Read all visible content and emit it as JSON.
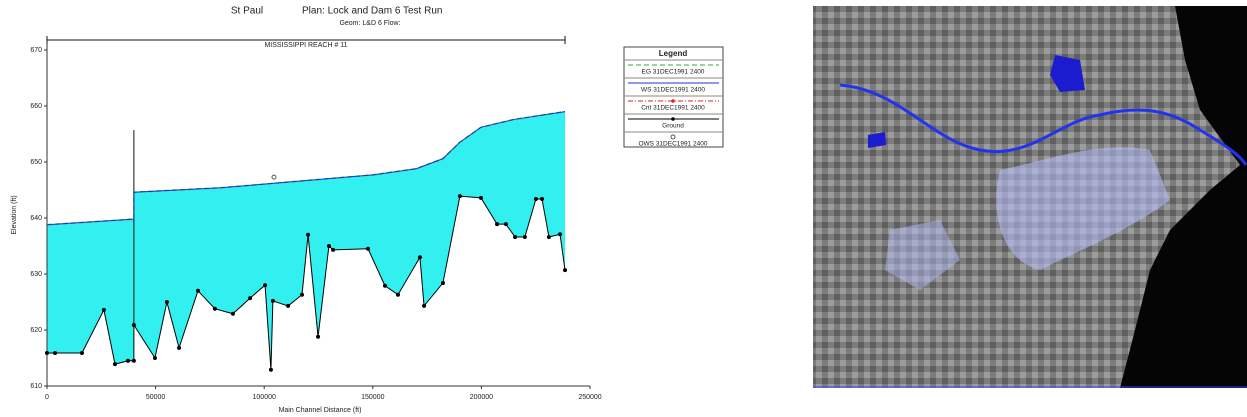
{
  "chart_data": {
    "type": "profile",
    "title": "St Paul",
    "plan": "Plan: Lock and Dam 6 Test Run",
    "subtitle": "Geom: L&D 6   Flow:",
    "reach": {
      "label": "MISSISSIPPI REACH # 11",
      "x": [
        0,
        238500
      ]
    },
    "x_label": "Main Channel Distance (ft)",
    "y_label": "Elevation (ft)",
    "xlim": [
      0,
      250000
    ],
    "xticks": [
      0,
      50000,
      100000,
      150000,
      200000,
      250000
    ],
    "ylim": [
      610,
      670
    ],
    "yticks": [
      610,
      620,
      630,
      640,
      650,
      660,
      670
    ],
    "fill_color": "#33f0f0",
    "structure": {
      "x": 40000,
      "bottom": 620.9,
      "top": 655.7
    },
    "legend_title": "Legend",
    "series": [
      {
        "name": "EG  31DEC1991 2400",
        "color": "#33aa33",
        "style": "dashed",
        "x": [
          0,
          40000,
          40000,
          80000,
          104500,
          150000,
          170000,
          182300,
          190000,
          199800,
          215000,
          238500
        ],
        "values": [
          638.8,
          639.8,
          644.6,
          645.4,
          646.2,
          647.7,
          648.8,
          650.6,
          653.5,
          656.2,
          657.6,
          659.0
        ]
      },
      {
        "name": "WS  31DEC1991 2400",
        "color": "#2233cc",
        "style": "solid",
        "x": [
          0,
          40000,
          40000,
          80000,
          104500,
          150000,
          170000,
          182300,
          190000,
          199800,
          215000,
          238500
        ],
        "values": [
          638.8,
          639.8,
          644.6,
          645.4,
          646.2,
          647.7,
          648.8,
          650.6,
          653.5,
          656.2,
          657.6,
          659.0
        ]
      },
      {
        "name": "Crit  31DEC1991 2400",
        "color": "#dd2222",
        "style": "dashdot",
        "x": [],
        "values": []
      },
      {
        "name": "Ground",
        "color": "#000000",
        "style": "ground",
        "x": [
          0,
          3700,
          16100,
          26200,
          31300,
          37300,
          40000,
          40000,
          49700,
          55200,
          60800,
          69500,
          77300,
          85600,
          93500,
          100400,
          103100,
          104000,
          111000,
          117400,
          120200,
          124800,
          129800,
          131700,
          147800,
          155600,
          161600,
          171700,
          173600,
          182300,
          190100,
          199800,
          207200,
          211300,
          215500,
          220000,
          225100,
          227900,
          231100,
          236200,
          238500
        ],
        "values": [
          615.9,
          615.9,
          615.9,
          623.6,
          613.9,
          614.5,
          614.5,
          620.9,
          615,
          625,
          616.8,
          627,
          623.8,
          622.9,
          625.7,
          628,
          612.9,
          625.2,
          624.3,
          626.3,
          637,
          618.8,
          635,
          634.3,
          634.5,
          627.9,
          626.3,
          633,
          624.3,
          628.4,
          643.9,
          643.6,
          638.9,
          638.9,
          636.6,
          636.6,
          643.4,
          643.4,
          636.6,
          637.1,
          630.7
        ]
      },
      {
        "name": "OWS  31DEC1991 2400",
        "color": "#555555",
        "style": "marker",
        "x": [
          104500
        ],
        "values": [
          647.3
        ]
      }
    ]
  }
}
